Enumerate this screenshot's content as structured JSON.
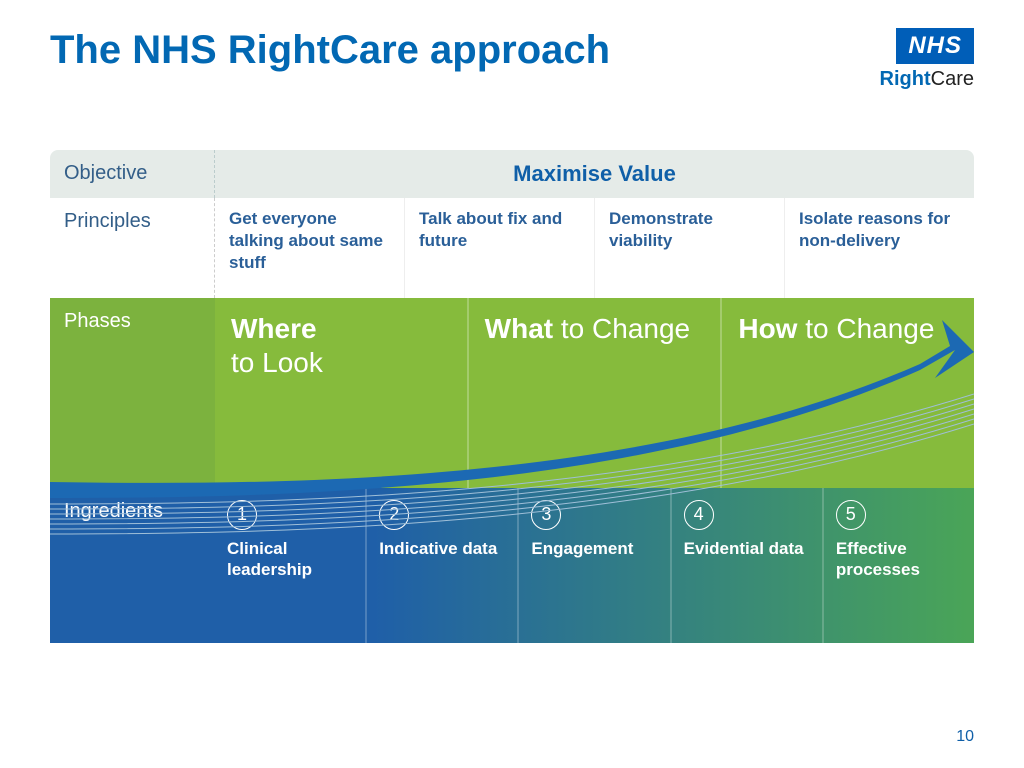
{
  "title": {
    "text": "The NHS RightCare approach",
    "color": "#0268b3"
  },
  "logo": {
    "box_text": "NHS",
    "box_bg": "#005eb8",
    "sub_text": "RightCare",
    "sub_color_left": "#0268b3",
    "sub_color_right": "#222"
  },
  "page_number": "10",
  "rows": {
    "objective": {
      "label": "Objective",
      "value": "Maximise Value",
      "bg": "#e5ebe8",
      "label_color": "#335e88",
      "value_color": "#0f5fa8"
    },
    "principles": {
      "label": "Principles",
      "label_color": "#335e88",
      "items": [
        {
          "text": "Get everyone talking about same stuff"
        },
        {
          "text": "Talk about fix and future"
        },
        {
          "text": "Demonstrate viability"
        },
        {
          "text": "Isolate reasons for non-delivery"
        }
      ],
      "text_color": "#2a5f98"
    },
    "phases": {
      "label": "Phases",
      "bg": "#86bb3c",
      "label_bg": "#7cb23e",
      "items": [
        {
          "bold": "Where",
          "rest": "to Look"
        },
        {
          "bold": "What",
          "rest": "to Change"
        },
        {
          "bold": "How",
          "rest": "to Change"
        }
      ]
    },
    "ingredients": {
      "label": "Ingredients",
      "gradient_from": "#1f5fa8",
      "gradient_to": "#4aa557",
      "items": [
        {
          "num": "1",
          "label": "Clinical leadership"
        },
        {
          "num": "2",
          "label": "Indicative data"
        },
        {
          "num": "3",
          "label": "Engagement"
        },
        {
          "num": "4",
          "label": "Evidential data"
        },
        {
          "num": "5",
          "label": "Effective processes"
        }
      ]
    }
  },
  "arrow": {
    "stroke": "#1c69b3",
    "fill": "#1c69b3",
    "band_stroke": "#9fbfd8"
  }
}
